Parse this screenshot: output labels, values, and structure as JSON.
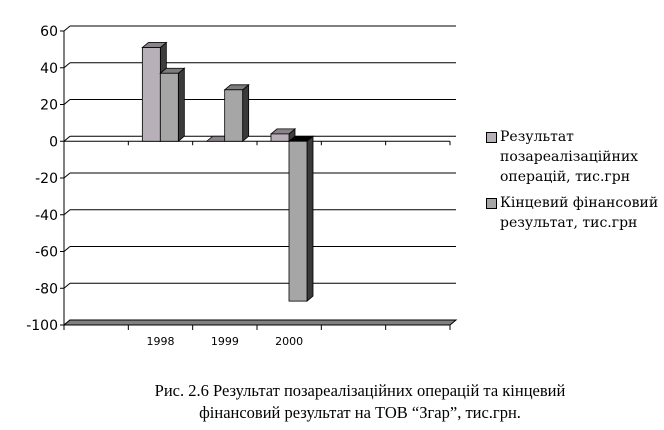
{
  "chart_data": {
    "type": "bar",
    "style": "3d-clustered-column",
    "categories": [
      "",
      "1998",
      "1999",
      "2000",
      "",
      ""
    ],
    "series": [
      {
        "name": "Результат позареалізаційних операцій, тис.грн",
        "values": [
          null,
          51,
          0,
          4,
          null,
          null
        ],
        "color": "#b8b0b8"
      },
      {
        "name": "Кінцевий фінансовий результат, тис.грн",
        "values": [
          null,
          37,
          28,
          -87,
          null,
          null
        ],
        "color": "#a6a6a6"
      }
    ],
    "ylim": [
      -100,
      60
    ],
    "yticks": [
      "60",
      "40",
      "20",
      "0",
      "-20",
      "-40",
      "-60",
      "-80",
      "-100"
    ],
    "grid": true,
    "legend": "right"
  },
  "caption": {
    "line1": "Рис. 2.6  Результат позареалізаційних операцій та кінцевий",
    "line2": "фінансовий результат на ТОВ “Згар”, тис.грн."
  }
}
